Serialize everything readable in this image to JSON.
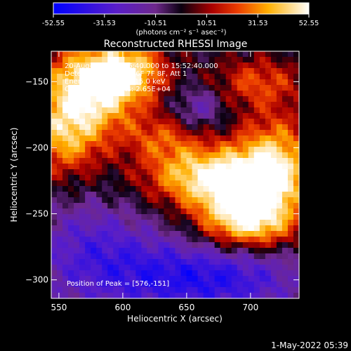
{
  "chart_data": {
    "type": "heatmap",
    "title": "Reconstructed RHESSI Image",
    "xlabel": "Heliocentric X (arcsec)",
    "ylabel": "Heliocentric Y (arcsec)",
    "xlim": [
      544,
      738
    ],
    "ylim": [
      -314,
      -127
    ],
    "x_ticks": [
      550,
      600,
      650,
      700
    ],
    "y_ticks": [
      -150,
      -200,
      -250,
      -300
    ],
    "colorbar": {
      "range": [
        -52.55,
        52.55
      ],
      "ticks": [
        "-52.55",
        "-31.53",
        "-10.51",
        "10.51",
        "31.53",
        "52.55"
      ],
      "unit_label": "(photons cm⁻² s⁻¹ asec⁻²)"
    },
    "annotations": [
      "20-Aug-2002 15:46:40.000 to 15:52:40.000",
      "Detectors: 3F 4F 6F 6F 7F 8F, Att 1",
      "Energy range: 3.0 - 15.0 keV",
      "Clean. Total counts: 2.65E+04"
    ],
    "peak_label": "Position of Peak = [576,-151]",
    "sources": [
      {
        "x": 580,
        "y": -151,
        "sx": 28,
        "sy": 22,
        "value": 60
      },
      {
        "x": 555,
        "y": -190,
        "sx": 22,
        "sy": 22,
        "value": 40
      },
      {
        "x": 610,
        "y": -140,
        "sx": 18,
        "sy": 14,
        "value": 25
      },
      {
        "x": 690,
        "y": -235,
        "sx": 26,
        "sy": 22,
        "value": 52
      },
      {
        "x": 720,
        "y": -215,
        "sx": 22,
        "sy": 28,
        "value": 45
      },
      {
        "x": 650,
        "y": -220,
        "sx": 28,
        "sy": 16,
        "value": 35
      },
      {
        "x": 700,
        "y": -260,
        "sx": 24,
        "sy": 12,
        "value": 25
      },
      {
        "x": 705,
        "y": -150,
        "sx": 26,
        "sy": 14,
        "value": 25
      },
      {
        "x": 630,
        "y": -192,
        "sx": 22,
        "sy": 12,
        "value": 22
      },
      {
        "x": 600,
        "y": -295,
        "sx": 50,
        "sy": 22,
        "value": -25
      },
      {
        "x": 680,
        "y": -300,
        "sx": 45,
        "sy": 18,
        "value": -30
      },
      {
        "x": 660,
        "y": -170,
        "sx": 14,
        "sy": 12,
        "value": -18
      },
      {
        "x": 575,
        "y": -265,
        "sx": 30,
        "sy": 20,
        "value": -15
      }
    ],
    "base_level": -4
  },
  "footer": {
    "timestamp": "1-May-2022 05:39"
  },
  "colors": {
    "background": "#000000",
    "text": "#ffffff"
  }
}
